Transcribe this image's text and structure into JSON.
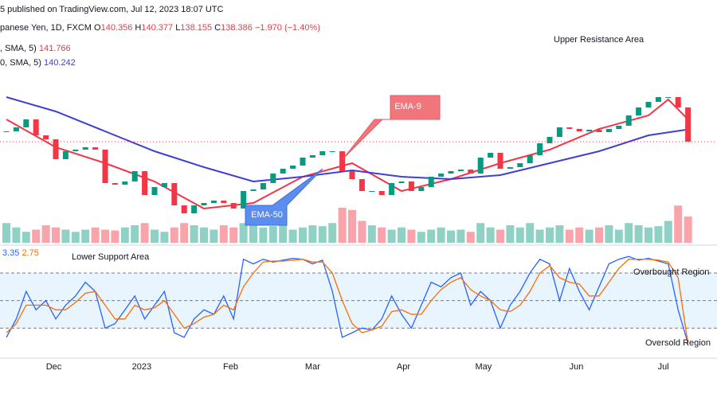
{
  "chart_data": [
    {
      "type": "candlestick",
      "published": "5 published on TradingView.com, Jul 12, 2023 18:07 UTC",
      "symbol": "panese Yen, 1D, FXCM",
      "ohlc_labels": [
        "O",
        "H",
        "L",
        "C"
      ],
      "open": 140.356,
      "high": 140.377,
      "low": 138.155,
      "change": "−1.970 (−1.40%)",
      "up_color": "#089981",
      "down_color": "#f23645",
      "xlim": [
        0,
        69
      ],
      "ylim": [
        123.15,
        159.75
      ],
      "close": [
        139.95,
        140.55,
        141.75,
        139.35,
        138.75,
        135.75,
        136.95,
        137.19,
        137.55,
        137.19,
        132.15,
        131.91,
        132.39,
        133.95,
        130.35,
        131.55,
        132.15,
        128.79,
        127.59,
        128.79,
        129.15,
        129.51,
        129.15,
        128.31,
        130.95,
        131.19,
        132.15,
        133.59,
        134.31,
        134.79,
        135.99,
        136.35,
        136.95,
        136.95,
        133.95,
        132.75,
        130.95,
        130.95,
        130.35,
        132.15,
        132.39,
        130.95,
        131.55,
        133.11,
        133.59,
        133.95,
        134.19,
        133.59,
        135.99,
        136.71,
        134.31,
        134.55,
        135.15,
        136.35,
        138.15,
        139.11,
        140.55,
        140.31,
        139.95,
        140.19,
        139.83,
        140.31,
        140.79,
        142.35,
        143.55,
        144.39,
        145.11,
        145.11,
        143.55,
        138.386
      ],
      "volume": [
        45,
        35,
        25,
        30,
        40,
        35,
        30,
        25,
        30,
        35,
        30,
        28,
        35,
        40,
        45,
        30,
        25,
        35,
        45,
        40,
        35,
        30,
        40,
        35,
        45,
        40,
        35,
        38,
        40,
        30,
        35,
        40,
        38,
        45,
        80,
        75,
        50,
        40,
        35,
        30,
        35,
        30,
        25,
        30,
        35,
        28,
        30,
        25,
        45,
        35,
        30,
        40,
        35,
        45,
        30,
        35,
        40,
        30,
        35,
        30,
        35,
        40,
        30,
        45,
        40,
        35,
        38,
        50,
        85,
        60
      ],
      "volume_lim": [
        0,
        100
      ],
      "series": [
        {
          "name": ", SMA, 5)",
          "color": "#f23645",
          "x": [
            0,
            5,
            10,
            15,
            20,
            25,
            30,
            35,
            40,
            45,
            50,
            55,
            60,
            65,
            67,
            69
          ],
          "values": [
            141.75,
            137.55,
            135.15,
            132.39,
            128.31,
            129.15,
            133.11,
            135.15,
            130.95,
            132.75,
            135.15,
            137.19,
            140.31,
            142.35,
            144.75,
            141.766
          ]
        },
        {
          "name": "0, SMA, 5)",
          "color": "#3f3fd8",
          "x": [
            0,
            5,
            10,
            15,
            20,
            25,
            30,
            35,
            40,
            45,
            50,
            55,
            60,
            65,
            69
          ],
          "values": [
            145.11,
            142.95,
            139.95,
            136.95,
            134.55,
            132.39,
            133.11,
            134.07,
            133.11,
            132.75,
            133.35,
            135.15,
            136.95,
            139.35,
            140.242
          ]
        }
      ],
      "annotations": [
        "Upper Resistance Area",
        "EMA-9",
        "EMA-50"
      ]
    },
    {
      "type": "line",
      "xlim": [
        0,
        69
      ],
      "ylim": [
        -11,
        106
      ],
      "yticks": [
        20,
        50,
        80
      ],
      "xticks": [
        {
          "value": 4.8,
          "label": "Dec"
        },
        {
          "value": 13.7,
          "label": "2023"
        },
        {
          "value": 22.7,
          "label": "Feb"
        },
        {
          "value": 31,
          "label": "Mar"
        },
        {
          "value": 40.2,
          "label": "Apr"
        },
        {
          "value": 48.3,
          "label": "May"
        },
        {
          "value": 57.7,
          "label": "Jun"
        },
        {
          "value": 66.5,
          "label": "Jul"
        }
      ],
      "series": [
        {
          "color": "#2962ff",
          "values": [
            10,
            30,
            60,
            40,
            50,
            30,
            45,
            55,
            70,
            60,
            20,
            25,
            40,
            55,
            30,
            45,
            60,
            15,
            10,
            30,
            40,
            35,
            55,
            30,
            95,
            90,
            95,
            92,
            94,
            96,
            95,
            90,
            94,
            60,
            10,
            15,
            20,
            18,
            30,
            55,
            35,
            20,
            45,
            70,
            65,
            75,
            80,
            45,
            60,
            50,
            20,
            45,
            60,
            80,
            95,
            90,
            50,
            85,
            60,
            40,
            65,
            90,
            95,
            98,
            94,
            96,
            93,
            90,
            40,
            3.35
          ]
        },
        {
          "color": "#ff6d00",
          "values": [
            15,
            25,
            45,
            45,
            45,
            40,
            40,
            48,
            58,
            60,
            45,
            30,
            30,
            45,
            40,
            42,
            50,
            35,
            20,
            25,
            32,
            35,
            45,
            40,
            65,
            80,
            92,
            93,
            93,
            94,
            95,
            92,
            92,
            80,
            50,
            25,
            15,
            18,
            22,
            38,
            40,
            35,
            35,
            50,
            62,
            70,
            75,
            62,
            55,
            50,
            40,
            38,
            45,
            60,
            80,
            88,
            75,
            70,
            68,
            55,
            55,
            70,
            85,
            95,
            95,
            95,
            94,
            92,
            75,
            2.75
          ]
        }
      ],
      "annotations": [
        "Lower Support Area",
        "Overbought Region",
        "Oversold Region"
      ]
    }
  ]
}
